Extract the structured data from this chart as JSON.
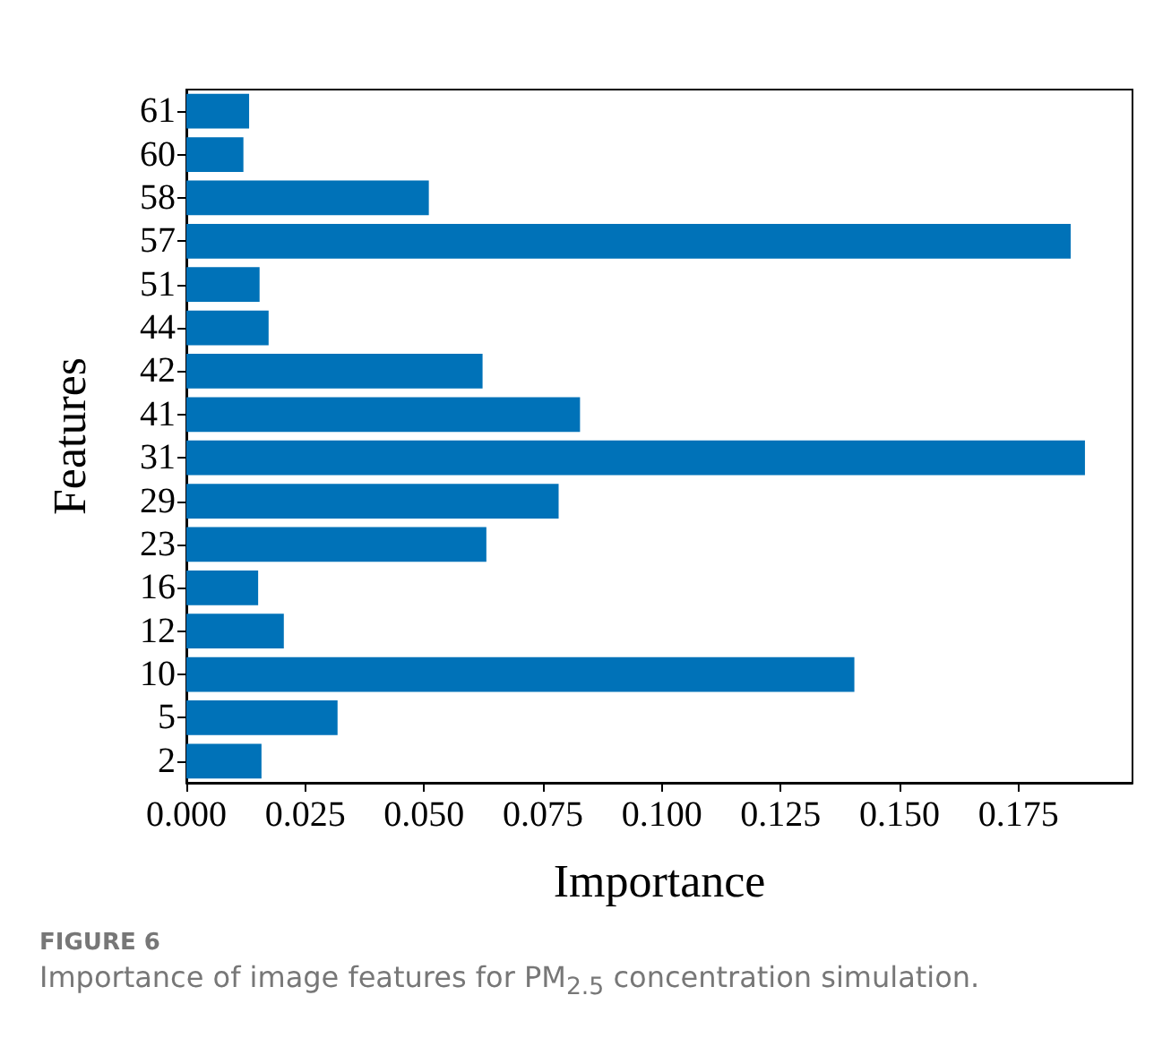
{
  "chart_data": {
    "type": "bar",
    "orientation": "horizontal",
    "xlabel": "Importance",
    "ylabel": "Features",
    "categories": [
      "61",
      "60",
      "58",
      "57",
      "51",
      "44",
      "42",
      "41",
      "31",
      "29",
      "23",
      "16",
      "12",
      "10",
      "5",
      "2"
    ],
    "values": [
      0.0132,
      0.012,
      0.051,
      0.186,
      0.0154,
      0.0173,
      0.0623,
      0.0828,
      0.189,
      0.0783,
      0.0631,
      0.0151,
      0.0205,
      0.1405,
      0.0318,
      0.0158
    ],
    "color": "#0072b8",
    "xlim": [
      0,
      0.199
    ],
    "xticks": [
      {
        "value": 0,
        "label": "0.000"
      },
      {
        "value": 0.025,
        "label": "0.025"
      },
      {
        "value": 0.05,
        "label": "0.050"
      },
      {
        "value": 0.075,
        "label": "0.075"
      },
      {
        "value": 0.1,
        "label": "0.100"
      },
      {
        "value": 0.125,
        "label": "0.125"
      },
      {
        "value": 0.15,
        "label": "0.150"
      },
      {
        "value": 0.175,
        "label": "0.175"
      }
    ],
    "grid": false,
    "annotations": [
      "FIGURE 6",
      "Importance of image features for PM$_{2.5}$ concentration simulation."
    ]
  }
}
